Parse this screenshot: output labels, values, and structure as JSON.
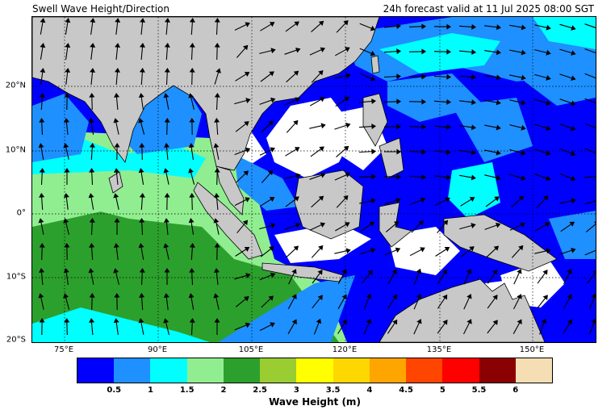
{
  "header": {
    "title": "Swell Wave Height/Direction",
    "forecast": "24h forecast valid at 11 Jul 2025 08:00 SGT"
  },
  "map": {
    "lon_range": [
      65,
      155
    ],
    "lat_range": [
      -20,
      30
    ],
    "land_color": "#c8c8c8",
    "gridlines": "dotted",
    "lat_ticks": [
      "20°N",
      "10°N",
      "0°",
      "10°S",
      "20°S"
    ],
    "lon_ticks": [
      "75°E",
      "90°E",
      "105°E",
      "120°E",
      "135°E",
      "150°E"
    ]
  },
  "colorbar": {
    "label": "Wave Height (m)",
    "colors": [
      "#0000ff",
      "#1e90ff",
      "#00ffff",
      "#90ee90",
      "#2ca02c",
      "#9acd32",
      "#ffff00",
      "#ffd700",
      "#ffa500",
      "#ff4500",
      "#ff0000",
      "#8b0000",
      "#f5deb3"
    ],
    "ticks": [
      "0.5",
      "1",
      "1.5",
      "2",
      "2.5",
      "3",
      "3.5",
      "4",
      "4.5",
      "5",
      "5.5",
      "6"
    ]
  }
}
